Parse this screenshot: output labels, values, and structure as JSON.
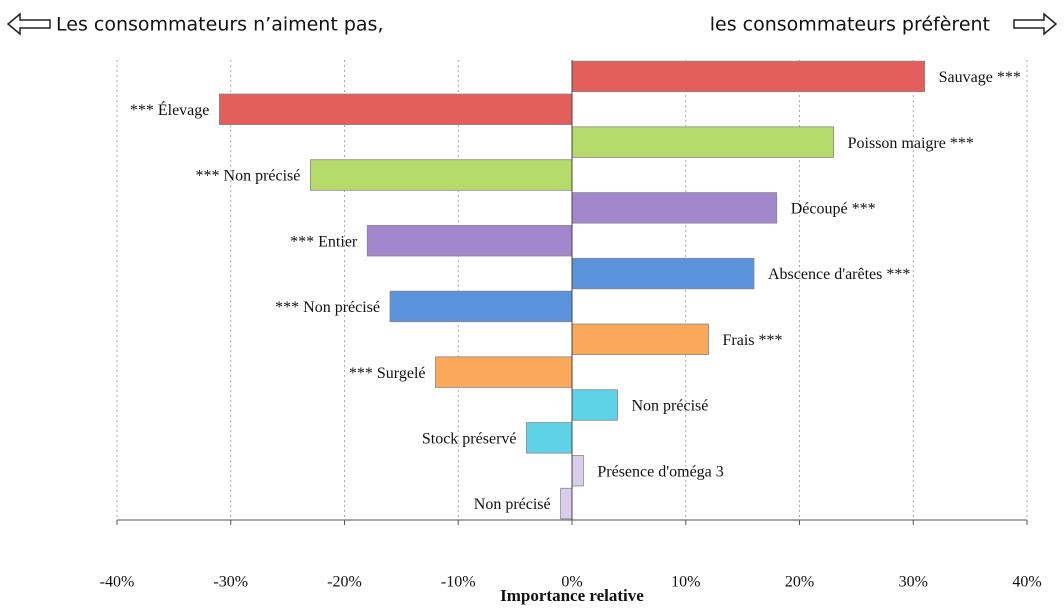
{
  "chart_data": {
    "type": "bar",
    "orientation": "horizontal",
    "header_left": "Les consommateurs n’aiment pas,",
    "header_right": "les consommateurs préfèrent",
    "x_label": "Importance relative",
    "categories": [
      "Sauvage ***",
      "*** Élevage",
      "Poisson maigre ***",
      "*** Non précisé",
      "Découpé ***",
      "*** Entier",
      "Abscence d'arêtes ***",
      "*** Non précisé",
      "Frais ***",
      "*** Surgelé",
      "Non précisé",
      "Stock préservé",
      "Présence d'oméga 3",
      "Non précisé"
    ],
    "values": [
      31,
      -31,
      23,
      -23,
      18,
      -18,
      16,
      -16,
      12,
      -12,
      4,
      -4,
      1,
      -1
    ],
    "colors": [
      "#e35f5b",
      "#e35f5b",
      "#b5dc6a",
      "#b5dc6a",
      "#a287cc",
      "#a287cc",
      "#5b92dc",
      "#5b92dc",
      "#fba85a",
      "#fba85a",
      "#5ed2e6",
      "#5ed2e6",
      "#d9cdee",
      "#d9cdee"
    ],
    "xlim": [
      -40,
      40
    ],
    "xticks": [
      {
        "value": -40,
        "label": "-40%"
      },
      {
        "value": -30,
        "label": "-30%"
      },
      {
        "value": -20,
        "label": "-20%"
      },
      {
        "value": -10,
        "label": "-10%"
      },
      {
        "value": 0,
        "label": "0%"
      },
      {
        "value": 10,
        "label": "10%"
      },
      {
        "value": 20,
        "label": "20%"
      },
      {
        "value": 30,
        "label": "30%"
      },
      {
        "value": 40,
        "label": "40%"
      }
    ],
    "grid": true
  }
}
